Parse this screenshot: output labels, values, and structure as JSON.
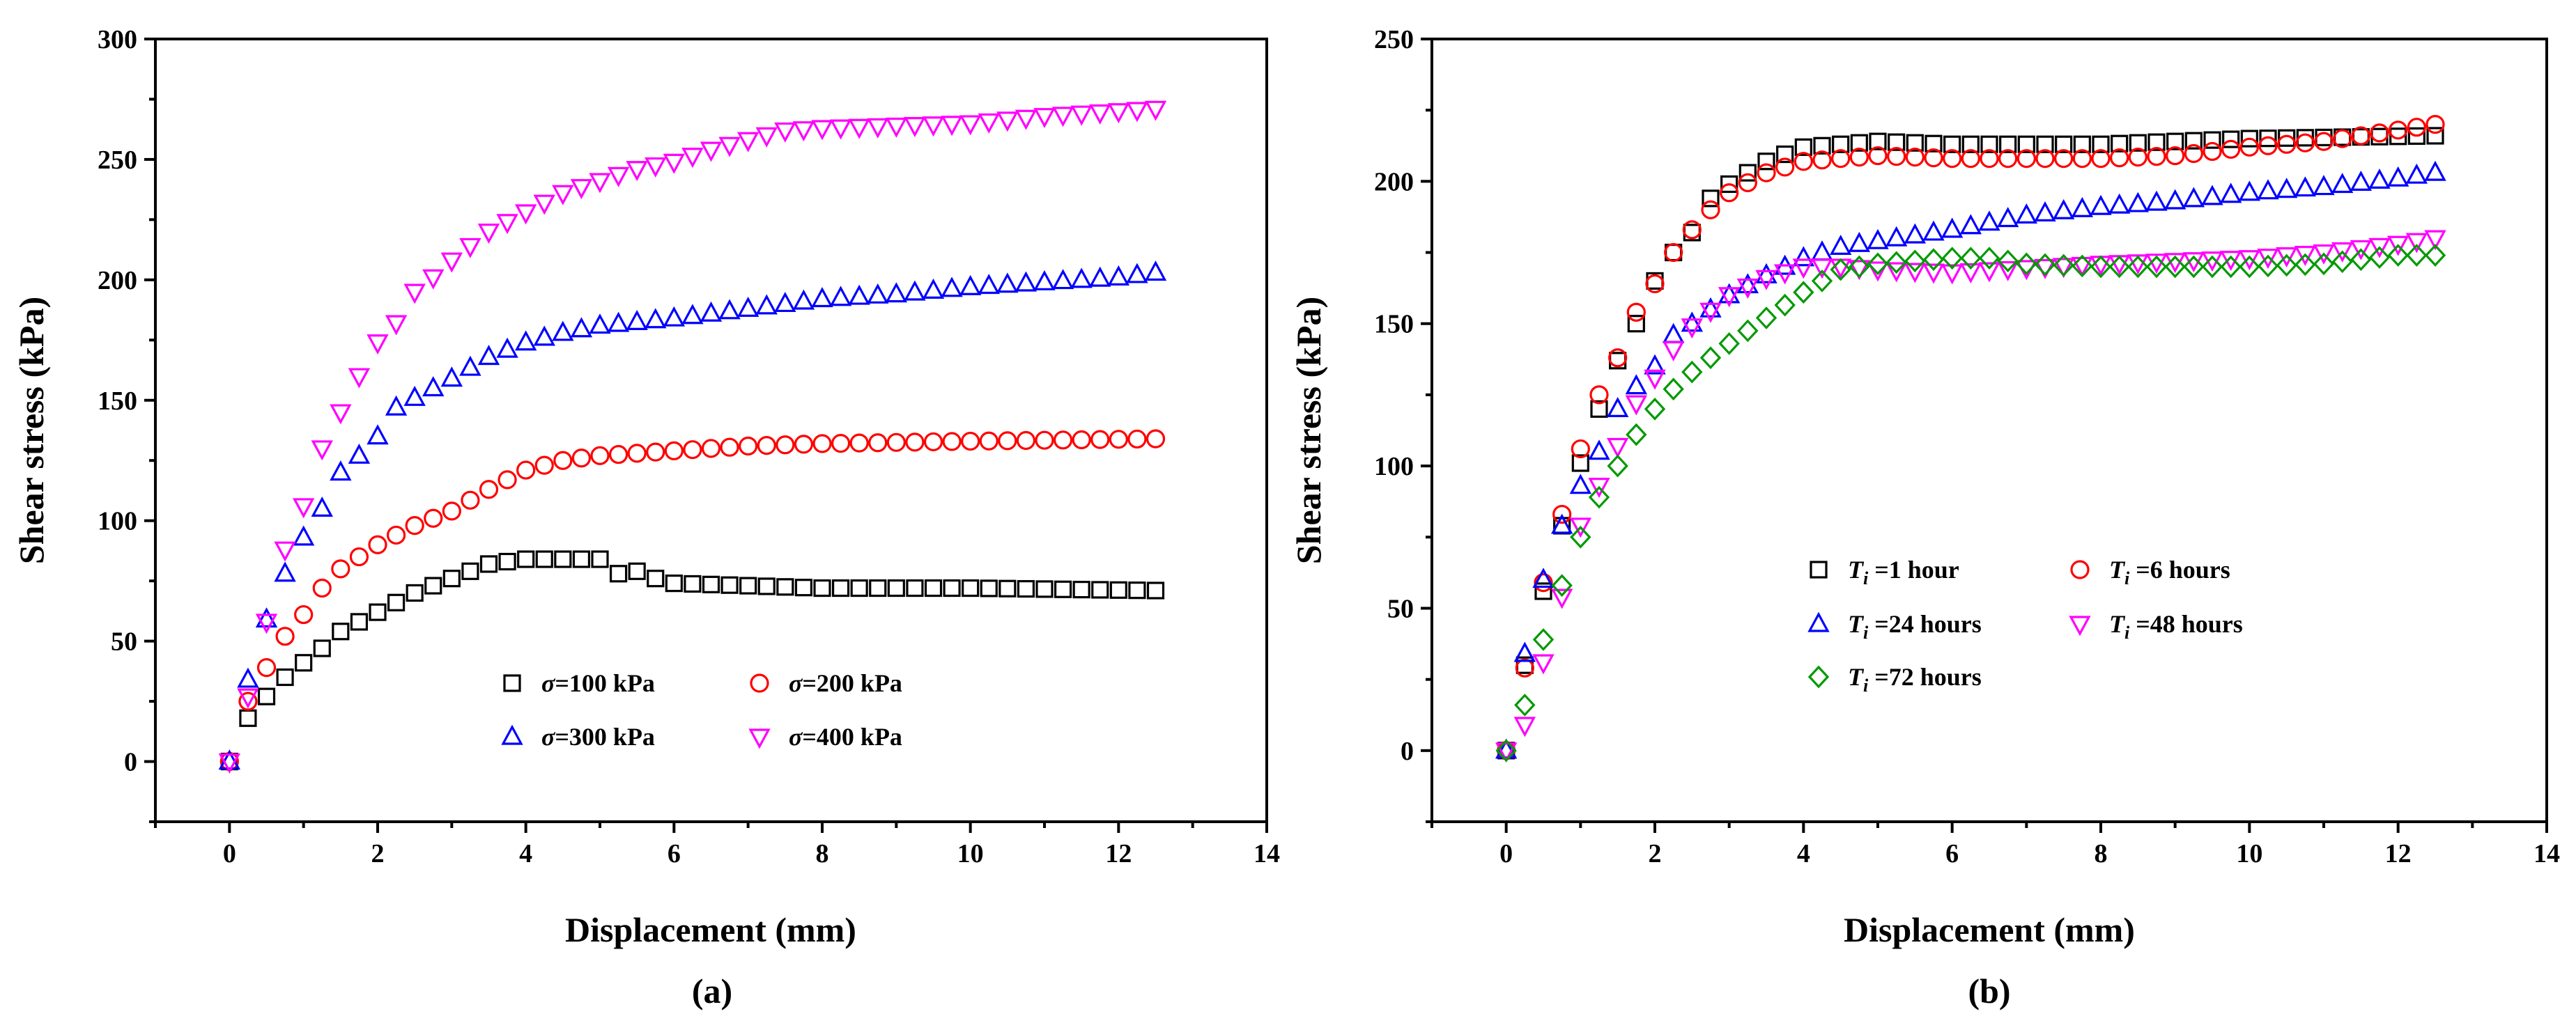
{
  "figure": {
    "panels": [
      {
        "id": "a",
        "caption": "(a)",
        "xlabel": "Displacement (mm)",
        "ylabel": "Shear stress (kPa)",
        "xlim": [
          -1,
          14
        ],
        "ylim": [
          -25,
          300
        ],
        "xticks": [
          0,
          2,
          4,
          6,
          8,
          10,
          12,
          14
        ],
        "yticks": [
          0,
          50,
          100,
          150,
          200,
          250,
          300
        ],
        "legend": [
          {
            "sym": "σ",
            "sub": "",
            "rest": "=100 kPa",
            "marker": "square",
            "color": "#000000"
          },
          {
            "sym": "σ",
            "sub": "",
            "rest": "=200 kPa",
            "marker": "circle",
            "color": "#ff0000"
          },
          {
            "sym": "σ",
            "sub": "",
            "rest": "=300 kPa",
            "marker": "triangle-up",
            "color": "#0000ff"
          },
          {
            "sym": "σ",
            "sub": "",
            "rest": "=400 kPa",
            "marker": "triangle-down",
            "color": "#ff00ff"
          }
        ]
      },
      {
        "id": "b",
        "caption": "(b)",
        "xlabel": "Displacement (mm)",
        "ylabel": "Shear stress (kPa)",
        "xlim": [
          -1,
          14
        ],
        "ylim": [
          -25,
          250
        ],
        "xticks": [
          0,
          2,
          4,
          6,
          8,
          10,
          12,
          14
        ],
        "yticks": [
          0,
          50,
          100,
          150,
          200,
          250
        ],
        "legend": [
          {
            "sym": "T",
            "sub": "i",
            "rest": " =1 hour",
            "marker": "square",
            "color": "#000000"
          },
          {
            "sym": "T",
            "sub": "i",
            "rest": " =6 hours",
            "marker": "circle",
            "color": "#ff0000"
          },
          {
            "sym": "T",
            "sub": "i",
            "rest": " =24 hours",
            "marker": "triangle-up",
            "color": "#0000ff"
          },
          {
            "sym": "T",
            "sub": "i",
            "rest": " =48 hours",
            "marker": "triangle-down",
            "color": "#ff00ff"
          },
          {
            "sym": "T",
            "sub": "i",
            "rest": " =72 hours",
            "marker": "diamond",
            "color": "#009900"
          }
        ]
      }
    ]
  },
  "chart_data": [
    {
      "type": "scatter",
      "title": "(a)",
      "xlabel": "Displacement (mm)",
      "ylabel": "Shear stress (kPa)",
      "xlim": [
        -1,
        14
      ],
      "ylim": [
        -25,
        300
      ],
      "x_points": "0, 0.25, 0.5, ... 12.5 (step 0.25 mm)",
      "series": [
        {
          "name": "σ=100 kPa",
          "marker": "square",
          "color": "#000000",
          "x": [
            [
              0,
              5.5,
              0.25
            ],
            [
              5.5,
              12.5,
              0.25
            ]
          ],
          "knots": [
            [
              0,
              0
            ],
            [
              0.25,
              18
            ],
            [
              0.5,
              27
            ],
            [
              0.75,
              35
            ],
            [
              1,
              41
            ],
            [
              1.25,
              47
            ],
            [
              1.5,
              54
            ],
            [
              1.75,
              58
            ],
            [
              2,
              62
            ],
            [
              2.5,
              70
            ],
            [
              3,
              76
            ],
            [
              3.5,
              82
            ],
            [
              4,
              84
            ],
            [
              4.5,
              84
            ],
            [
              5,
              84
            ],
            [
              5.25,
              78
            ],
            [
              5.5,
              79
            ],
            [
              5.75,
              76
            ],
            [
              6,
              74
            ],
            [
              7,
              73
            ],
            [
              8,
              72
            ],
            [
              10,
              72
            ],
            [
              12.5,
              71
            ]
          ]
        },
        {
          "name": "σ=200 kPa",
          "marker": "circle",
          "color": "#ff0000",
          "knots": [
            [
              0,
              0
            ],
            [
              0.25,
              25
            ],
            [
              0.5,
              39
            ],
            [
              0.75,
              52
            ],
            [
              1,
              61
            ],
            [
              1.25,
              72
            ],
            [
              1.5,
              80
            ],
            [
              2,
              90
            ],
            [
              2.5,
              98
            ],
            [
              3,
              104
            ],
            [
              3.5,
              113
            ],
            [
              4,
              121
            ],
            [
              4.5,
              125
            ],
            [
              5,
              127
            ],
            [
              5.5,
              128
            ],
            [
              6,
              129
            ],
            [
              7,
              131
            ],
            [
              8,
              132
            ],
            [
              10,
              133
            ],
            [
              12.5,
              134
            ]
          ]
        },
        {
          "name": "σ=300 kPa",
          "marker": "triangle-up",
          "color": "#0000ff",
          "knots": [
            [
              0,
              0
            ],
            [
              0.25,
              34
            ],
            [
              0.5,
              59
            ],
            [
              0.75,
              78
            ],
            [
              1,
              93
            ],
            [
              1.25,
              105
            ],
            [
              1.5,
              120
            ],
            [
              1.75,
              127
            ],
            [
              2,
              135
            ],
            [
              2.25,
              147
            ],
            [
              2.5,
              151
            ],
            [
              3,
              159
            ],
            [
              3.5,
              168
            ],
            [
              4,
              174
            ],
            [
              4.5,
              178
            ],
            [
              5,
              181
            ],
            [
              6,
              184
            ],
            [
              7,
              188
            ],
            [
              8,
              192
            ],
            [
              9,
              194
            ],
            [
              10,
              197
            ],
            [
              11,
              199
            ],
            [
              12,
              201
            ],
            [
              12.5,
              203
            ]
          ]
        },
        {
          "name": "σ=400 kPa",
          "marker": "triangle-down",
          "color": "#ff00ff",
          "knots": [
            [
              0,
              0
            ],
            [
              0.25,
              27
            ],
            [
              0.5,
              58
            ],
            [
              0.75,
              88
            ],
            [
              1,
              106
            ],
            [
              1.25,
              130
            ],
            [
              1.5,
              145
            ],
            [
              1.75,
              160
            ],
            [
              2,
              174
            ],
            [
              2.25,
              182
            ],
            [
              2.5,
              195
            ],
            [
              2.75,
              201
            ],
            [
              3,
              208
            ],
            [
              3.5,
              220
            ],
            [
              4,
              228
            ],
            [
              4.5,
              236
            ],
            [
              5,
              241
            ],
            [
              5.5,
              246
            ],
            [
              6,
              249
            ],
            [
              6.5,
              254
            ],
            [
              7,
              258
            ],
            [
              7.5,
              262
            ],
            [
              8,
              263
            ],
            [
              9,
              264
            ],
            [
              10,
              265
            ],
            [
              11,
              268
            ],
            [
              12,
              270
            ],
            [
              12.5,
              271
            ]
          ]
        }
      ]
    },
    {
      "type": "scatter",
      "title": "(b)",
      "xlabel": "Displacement (mm)",
      "ylabel": "Shear stress (kPa)",
      "xlim": [
        -1,
        14
      ],
      "ylim": [
        -25,
        250
      ],
      "series": [
        {
          "name": "Ti =1 hour",
          "marker": "square",
          "color": "#000000",
          "knots": [
            [
              0,
              0
            ],
            [
              0.25,
              30
            ],
            [
              0.5,
              56
            ],
            [
              0.75,
              79
            ],
            [
              1,
              101
            ],
            [
              1.25,
              120
            ],
            [
              1.5,
              137
            ],
            [
              1.75,
              150
            ],
            [
              2,
              165
            ],
            [
              2.25,
              175
            ],
            [
              2.5,
              182
            ],
            [
              2.75,
              194
            ],
            [
              3,
              199
            ],
            [
              3.5,
              207
            ],
            [
              4,
              212
            ],
            [
              4.5,
              213
            ],
            [
              5,
              214
            ],
            [
              6,
              213
            ],
            [
              8,
              213
            ],
            [
              10,
              215
            ],
            [
              12.5,
              216
            ]
          ]
        },
        {
          "name": "Ti =6 hours",
          "marker": "circle",
          "color": "#ff0000",
          "knots": [
            [
              0,
              0
            ],
            [
              0.25,
              29
            ],
            [
              0.5,
              59
            ],
            [
              0.75,
              83
            ],
            [
              1,
              106
            ],
            [
              1.25,
              125
            ],
            [
              1.5,
              138
            ],
            [
              1.75,
              154
            ],
            [
              2,
              164
            ],
            [
              2.25,
              175
            ],
            [
              2.5,
              183
            ],
            [
              2.75,
              190
            ],
            [
              3,
              196
            ],
            [
              3.5,
              203
            ],
            [
              4,
              207
            ],
            [
              4.5,
              208
            ],
            [
              5,
              209
            ],
            [
              6,
              208
            ],
            [
              8,
              208
            ],
            [
              9,
              209
            ],
            [
              10,
              212
            ],
            [
              11,
              214
            ],
            [
              12,
              218
            ],
            [
              12.5,
              220
            ]
          ]
        },
        {
          "name": "Ti =24 hours",
          "marker": "triangle-up",
          "color": "#0000ff",
          "knots": [
            [
              0,
              0
            ],
            [
              0.25,
              34
            ],
            [
              0.5,
              60
            ],
            [
              0.75,
              79
            ],
            [
              1,
              93
            ],
            [
              1.25,
              105
            ],
            [
              1.5,
              120
            ],
            [
              1.75,
              128
            ],
            [
              2,
              135
            ],
            [
              2.25,
              146
            ],
            [
              2.5,
              150
            ],
            [
              3,
              160
            ],
            [
              3.5,
              167
            ],
            [
              4,
              173
            ],
            [
              4.5,
              177
            ],
            [
              5,
              179
            ],
            [
              6,
              183
            ],
            [
              7,
              188
            ],
            [
              8,
              191
            ],
            [
              9,
              193
            ],
            [
              10,
              196
            ],
            [
              11,
              198
            ],
            [
              12,
              201
            ],
            [
              12.5,
              203
            ]
          ]
        },
        {
          "name": "Ti =48 hours",
          "marker": "triangle-down",
          "color": "#ff00ff",
          "knots": [
            [
              0,
              0
            ],
            [
              0.25,
              9
            ],
            [
              0.5,
              31
            ],
            [
              0.75,
              54
            ],
            [
              1,
              79
            ],
            [
              1.25,
              93
            ],
            [
              1.5,
              107
            ],
            [
              1.75,
              122
            ],
            [
              2,
              131
            ],
            [
              2.25,
              141
            ],
            [
              2.5,
              149
            ],
            [
              3,
              160
            ],
            [
              3.5,
              166
            ],
            [
              4,
              170
            ],
            [
              4.5,
              170
            ],
            [
              5,
              169
            ],
            [
              6,
              168
            ],
            [
              8,
              171
            ],
            [
              10,
              173
            ],
            [
              11,
              175
            ],
            [
              12,
              178
            ],
            [
              12.5,
              180
            ]
          ]
        },
        {
          "name": "Ti =72 hours",
          "marker": "diamond",
          "color": "#009900",
          "knots": [
            [
              0,
              0
            ],
            [
              0.25,
              16
            ],
            [
              0.5,
              39
            ],
            [
              0.75,
              58
            ],
            [
              1,
              75
            ],
            [
              1.25,
              89
            ],
            [
              1.5,
              100
            ],
            [
              1.75,
              111
            ],
            [
              2,
              120
            ],
            [
              2.25,
              127
            ],
            [
              2.5,
              133
            ],
            [
              3,
              143
            ],
            [
              3.5,
              152
            ],
            [
              4,
              161
            ],
            [
              4.5,
              169
            ],
            [
              5,
              171
            ],
            [
              6,
              173
            ],
            [
              6.5,
              173
            ],
            [
              7,
              171
            ],
            [
              8,
              170
            ],
            [
              10,
              170
            ],
            [
              11,
              171
            ],
            [
              12,
              174
            ],
            [
              12.5,
              174
            ]
          ]
        }
      ]
    }
  ]
}
